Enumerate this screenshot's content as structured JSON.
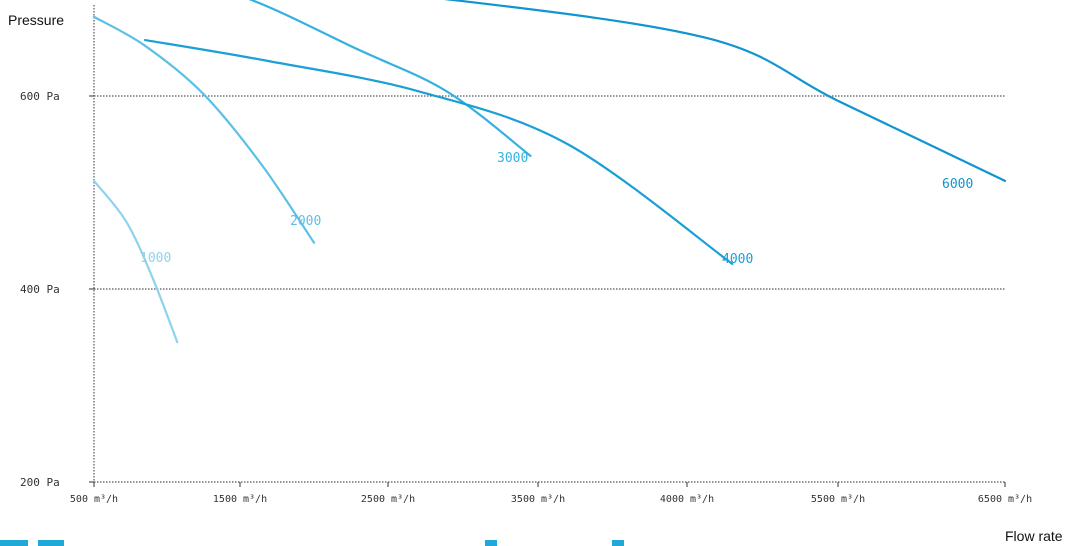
{
  "chart_data": {
    "type": "line",
    "ylabel": "Pressure",
    "xlabel": "Flow rate",
    "y_ticks": [
      {
        "value": 200,
        "label": "200 Pa"
      },
      {
        "value": 400,
        "label": "400 Pa"
      },
      {
        "value": 600,
        "label": "600 Pa"
      }
    ],
    "x_ticks": [
      {
        "value": 500,
        "label": "500 m³/h"
      },
      {
        "value": 1500,
        "label": "1500 m³/h"
      },
      {
        "value": 2500,
        "label": "2500 m³/h"
      },
      {
        "value": 3500,
        "label": "3500 m³/h"
      },
      {
        "value": 4000,
        "label": "4000 m³/h"
      },
      {
        "value": 5500,
        "label": "5500 m³/h"
      },
      {
        "value": 6500,
        "label": "6500 m³/h"
      }
    ],
    "grid": "horizontal dotted at 400 Pa and 600 Pa",
    "series": [
      {
        "name": "1000",
        "color": "#8fd2ee",
        "points": [
          [
            500,
            512
          ],
          [
            720,
            470
          ],
          [
            900,
            412
          ],
          [
            1070,
            345
          ]
        ]
      },
      {
        "name": "2000",
        "color": "#5cc0e6",
        "points": [
          [
            500,
            682
          ],
          [
            850,
            652
          ],
          [
            1250,
            602
          ],
          [
            1650,
            528
          ],
          [
            2000,
            448
          ]
        ]
      },
      {
        "name": "3000",
        "color": "#35b1e0",
        "points": [
          [
            700,
            734
          ],
          [
            1500,
            704
          ],
          [
            2300,
            648
          ],
          [
            2900,
            604
          ],
          [
            3450,
            538
          ]
        ]
      },
      {
        "name": "4000",
        "color": "#1a9fd6",
        "points": [
          [
            850,
            658
          ],
          [
            1700,
            636
          ],
          [
            2700,
            605
          ],
          [
            3600,
            550
          ],
          [
            4450,
            426
          ]
        ]
      },
      {
        "name": "6000",
        "color": "#1195d0",
        "points": [
          [
            1250,
            723
          ],
          [
            2800,
            702
          ],
          [
            4200,
            660
          ],
          [
            5500,
            595
          ],
          [
            6500,
            512
          ]
        ]
      }
    ]
  }
}
